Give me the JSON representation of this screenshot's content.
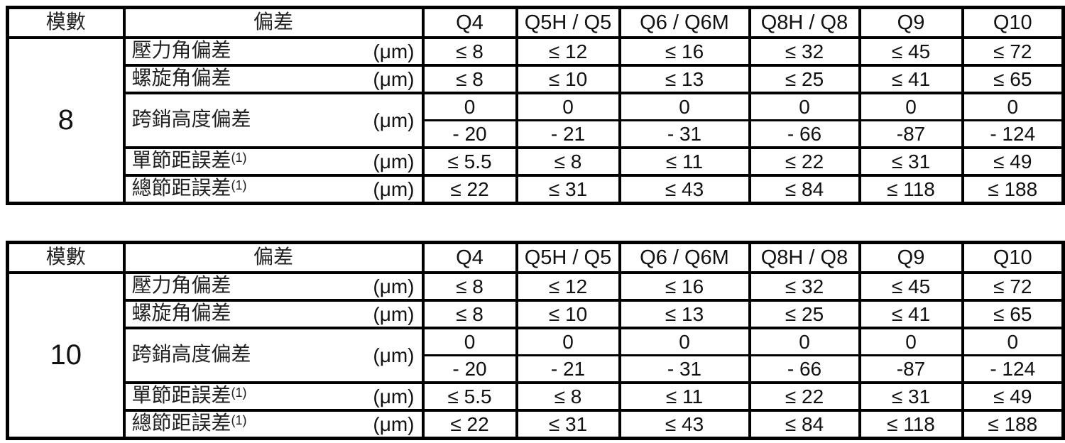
{
  "page": {
    "background": "#ffffff",
    "border_color": "#000000"
  },
  "tables": [
    {
      "module": "8",
      "header": {
        "module_label": "模數",
        "deviation_label": "偏差",
        "quality_grades": [
          "Q4",
          "Q5H / Q5",
          "Q6 / Q6M",
          "Q8H / Q8",
          "Q9",
          "Q10"
        ]
      },
      "rows": [
        {
          "label": "壓力角偏差",
          "sup": "",
          "unit": "(μm)",
          "values": [
            "≤ 8",
            "≤ 12",
            "≤ 16",
            "≤ 32",
            "≤ 45",
            "≤ 72"
          ]
        },
        {
          "label": "螺旋角偏差",
          "sup": "",
          "unit": "(μm)",
          "values": [
            "≤ 8",
            "≤ 10",
            "≤ 13",
            "≤ 25",
            "≤ 41",
            "≤ 65"
          ]
        },
        {
          "label": "跨銷高度偏差",
          "sup": "",
          "unit": "(μm)",
          "upper_values": [
            "0",
            "0",
            "0",
            "0",
            "0",
            "0"
          ],
          "lower_values": [
            "- 20",
            "- 21",
            "- 31",
            "- 66",
            "-87",
            "- 124"
          ]
        },
        {
          "label": "單節距誤差",
          "sup": "(1)",
          "unit": "(μm)",
          "values": [
            "≤ 5.5",
            "≤ 8",
            "≤ 11",
            "≤ 22",
            "≤ 31",
            "≤ 49"
          ]
        },
        {
          "label": "總節距誤差",
          "sup": "(1)",
          "unit": "(μm)",
          "values": [
            "≤ 22",
            "≤ 31",
            "≤ 43",
            "≤ 84",
            "≤ 118",
            "≤ 188"
          ]
        }
      ]
    },
    {
      "module": "10",
      "header": {
        "module_label": "模數",
        "deviation_label": "偏差",
        "quality_grades": [
          "Q4",
          "Q5H / Q5",
          "Q6 / Q6M",
          "Q8H / Q8",
          "Q9",
          "Q10"
        ]
      },
      "rows": [
        {
          "label": "壓力角偏差",
          "sup": "",
          "unit": "(μm)",
          "values": [
            "≤ 8",
            "≤ 12",
            "≤ 16",
            "≤ 32",
            "≤ 45",
            "≤ 72"
          ]
        },
        {
          "label": "螺旋角偏差",
          "sup": "",
          "unit": "(μm)",
          "values": [
            "≤ 8",
            "≤ 10",
            "≤ 13",
            "≤ 25",
            "≤ 41",
            "≤ 65"
          ]
        },
        {
          "label": "跨銷高度偏差",
          "sup": "",
          "unit": "(μm)",
          "upper_values": [
            "0",
            "0",
            "0",
            "0",
            "0",
            "0"
          ],
          "lower_values": [
            "- 20",
            "- 21",
            "- 31",
            "- 66",
            "-87",
            "- 124"
          ]
        },
        {
          "label": "單節距誤差",
          "sup": "(1)",
          "unit": "(μm)",
          "values": [
            "≤ 5.5",
            "≤ 8",
            "≤ 11",
            "≤ 22",
            "≤ 31",
            "≤ 49"
          ]
        },
        {
          "label": "總節距誤差",
          "sup": "(1)",
          "unit": "(μm)",
          "values": [
            "≤ 22",
            "≤ 31",
            "≤ 43",
            "≤ 84",
            "≤ 118",
            "≤ 188"
          ]
        }
      ]
    }
  ]
}
